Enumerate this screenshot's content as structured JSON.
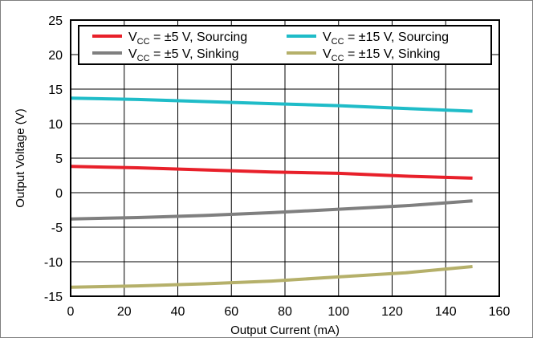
{
  "chart_data": {
    "type": "line",
    "title": "",
    "xlabel": "Output Current (mA)",
    "ylabel": "Output Voltage (V)",
    "xlim": [
      0,
      160
    ],
    "ylim": [
      -15,
      25
    ],
    "x_ticks": [
      0,
      20,
      40,
      60,
      80,
      100,
      120,
      140,
      160
    ],
    "y_ticks": [
      25,
      20,
      15,
      10,
      5,
      0,
      -5,
      -10,
      -15
    ],
    "grid": true,
    "legend_position": "top",
    "series": [
      {
        "name": "VCC = ±5 V, Sourcing",
        "legend": {
          "pre": "V",
          "sub": "CC",
          "post": " = ±5 V, Sourcing"
        },
        "color": "#e8202a",
        "x": [
          0,
          25,
          50,
          75,
          100,
          125,
          150
        ],
        "y": [
          3.8,
          3.6,
          3.3,
          3.0,
          2.8,
          2.4,
          2.1
        ]
      },
      {
        "name": "VCC = ±15 V, Sourcing",
        "legend": {
          "pre": "V",
          "sub": "CC",
          "post": " = ±15 V, Sourcing"
        },
        "color": "#1fbcc8",
        "x": [
          0,
          25,
          50,
          75,
          100,
          125,
          150
        ],
        "y": [
          13.7,
          13.5,
          13.2,
          12.9,
          12.6,
          12.2,
          11.8
        ]
      },
      {
        "name": "VCC = ±5 V, Sinking",
        "legend": {
          "pre": "V",
          "sub": "CC",
          "post": " = ±5 V, Sinking"
        },
        "color": "#7f7f7f",
        "x": [
          0,
          25,
          50,
          75,
          100,
          125,
          150
        ],
        "y": [
          -3.8,
          -3.6,
          -3.3,
          -2.9,
          -2.4,
          -1.9,
          -1.2
        ]
      },
      {
        "name": "VCC = ±15 V, Sinking",
        "legend": {
          "pre": "V",
          "sub": "CC",
          "post": " = ±15 V, Sinking"
        },
        "color": "#b5b06a",
        "x": [
          0,
          25,
          50,
          75,
          100,
          125,
          150
        ],
        "y": [
          -13.7,
          -13.5,
          -13.2,
          -12.8,
          -12.2,
          -11.6,
          -10.7
        ]
      }
    ]
  }
}
